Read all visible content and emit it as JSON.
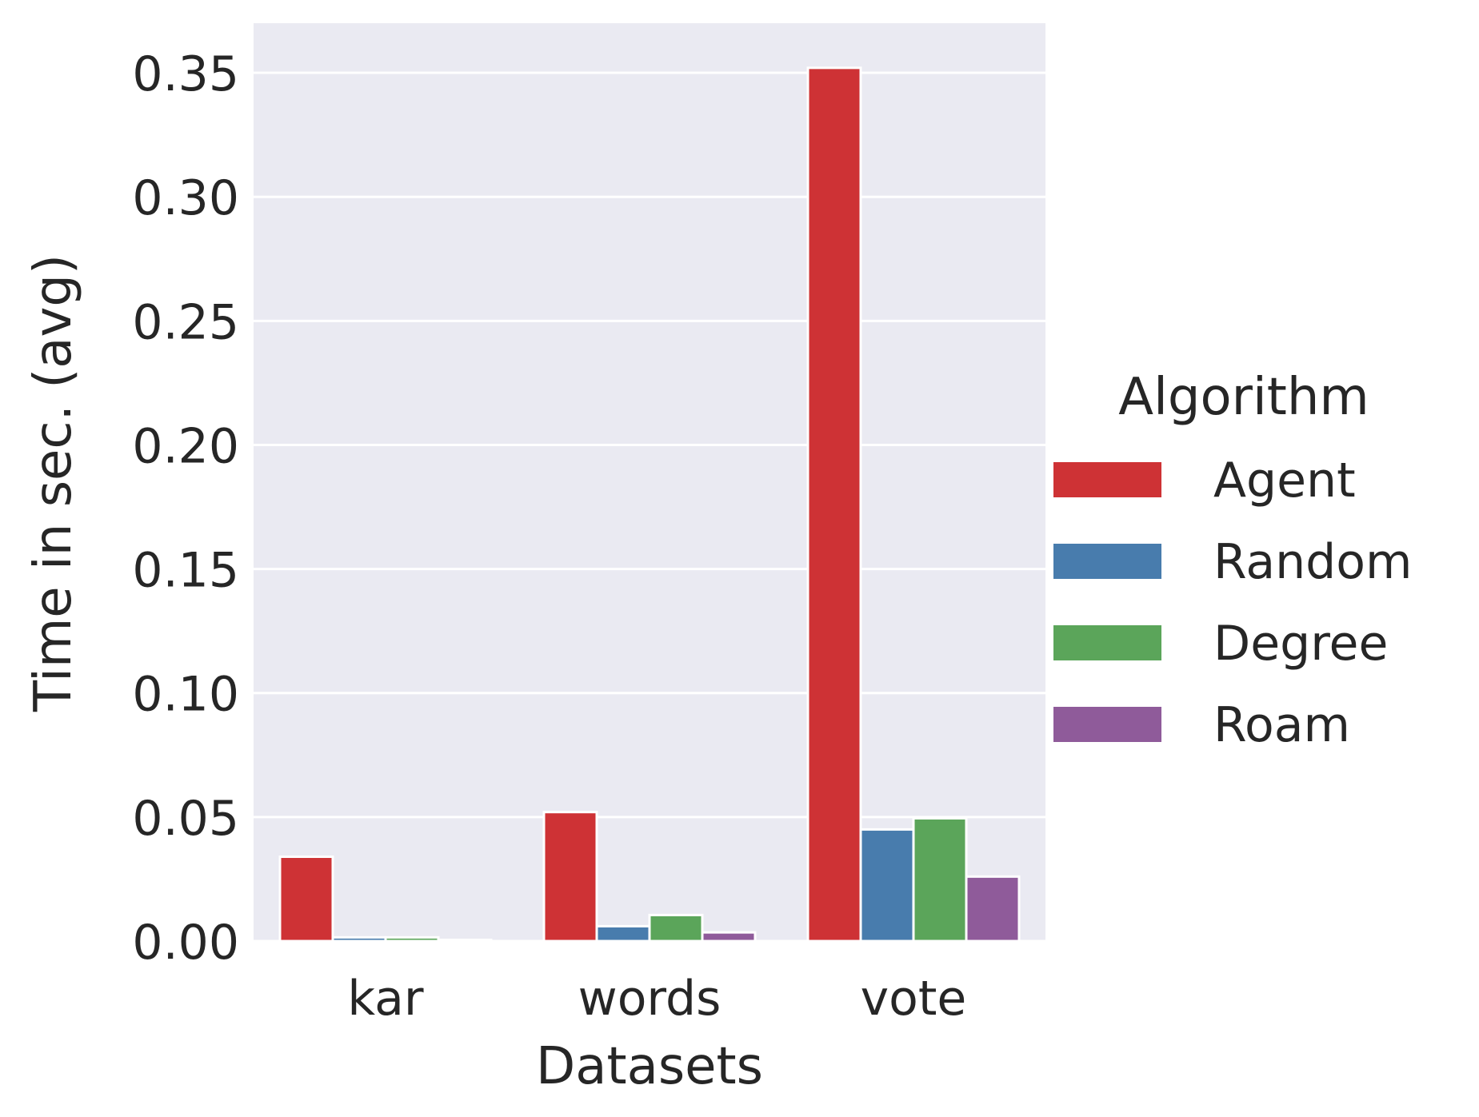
{
  "chart_data": {
    "type": "bar",
    "title": "",
    "xlabel": "Datasets",
    "ylabel": "Time in sec. (avg)",
    "categories": [
      "kar",
      "words",
      "vote"
    ],
    "series": [
      {
        "name": "Agent",
        "color": "#ce3235",
        "values": [
          0.034,
          0.052,
          0.352
        ]
      },
      {
        "name": "Random",
        "color": "#487cad",
        "values": [
          0.0015,
          0.006,
          0.045
        ]
      },
      {
        "name": "Degree",
        "color": "#5ba55a",
        "values": [
          0.0015,
          0.0105,
          0.0495
        ]
      },
      {
        "name": "Roam",
        "color": "#8f5b9a",
        "values": [
          0.0005,
          0.0035,
          0.026
        ]
      }
    ],
    "ylim": [
      0,
      0.37
    ],
    "yticks": [
      0.0,
      0.05,
      0.1,
      0.15,
      0.2,
      0.25,
      0.3,
      0.35
    ],
    "ytick_labels": [
      "0.00",
      "0.05",
      "0.10",
      "0.15",
      "0.20",
      "0.25",
      "0.30",
      "0.35"
    ],
    "grid": true,
    "plot_background": "#eaeaf2",
    "grid_color": "#ffffff",
    "legend": {
      "title": "Algorithm",
      "placement": "outside-right"
    }
  }
}
